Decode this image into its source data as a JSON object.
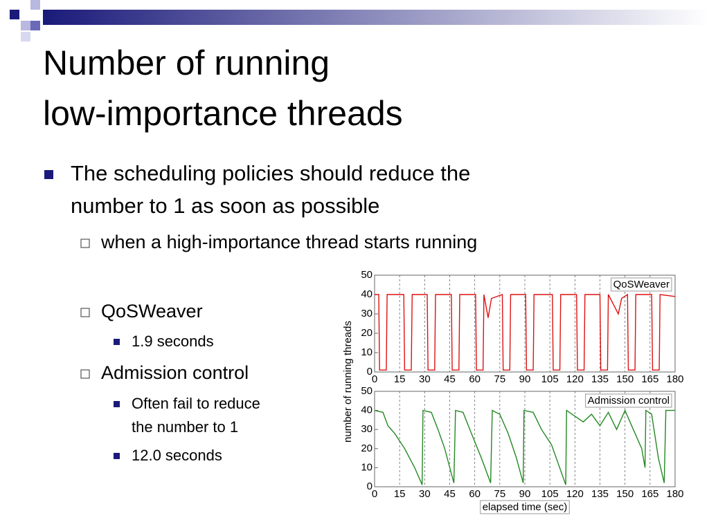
{
  "title": [
    "Number of running",
    "low-importance threads"
  ],
  "bullets": [
    {
      "level": 1,
      "lines": [
        "The scheduling policies should reduce the",
        "number to 1 as soon as possible"
      ]
    },
    {
      "level": 2,
      "lines": [
        "when a high-importance thread starts running"
      ]
    },
    {
      "level": 2,
      "lines": [
        "QoSWeaver"
      ]
    },
    {
      "level": 3,
      "lines": [
        "1.9 seconds"
      ]
    },
    {
      "level": 2,
      "lines": [
        "Admission control"
      ]
    },
    {
      "level": 3,
      "lines": [
        "Often fail to reduce",
        "the number to 1"
      ]
    },
    {
      "level": 3,
      "lines": [
        "12.0 seconds"
      ]
    }
  ],
  "chart_data": [
    {
      "type": "line",
      "y_label": "number of running threads",
      "x": [
        0,
        2.5,
        3,
        7,
        7.5,
        17.5,
        18,
        22,
        22.5,
        31.5,
        32,
        36,
        36.5,
        46,
        46.5,
        50.5,
        51,
        60.5,
        61,
        65,
        65.5,
        68,
        70,
        76.5,
        77,
        81,
        81.5,
        90.5,
        91,
        95,
        95.5,
        106.5,
        107,
        111,
        111.5,
        121,
        121.5,
        125.5,
        126,
        135,
        135.5,
        139.5,
        140,
        146,
        148,
        151.5,
        152,
        156,
        156.5,
        166,
        166.5,
        170.5,
        171,
        180
      ],
      "series": [
        {
          "name": "QoSWeaver",
          "color": "#dd1111",
          "values": [
            40,
            40,
            1,
            1,
            40,
            40,
            1,
            1,
            40,
            40,
            1,
            1,
            40,
            40,
            1,
            1,
            40,
            40,
            1,
            1,
            40,
            28,
            38,
            40,
            1,
            1,
            40,
            40,
            1,
            1,
            40,
            40,
            1,
            1,
            40,
            40,
            1,
            1,
            40,
            40,
            1,
            1,
            40,
            30,
            38,
            40,
            1,
            1,
            40,
            40,
            1,
            1,
            40,
            39
          ]
        }
      ],
      "xlim": [
        0,
        180
      ],
      "ylim": [
        0,
        50
      ],
      "xticks": [
        0,
        15,
        30,
        45,
        60,
        75,
        90,
        105,
        120,
        135,
        150,
        165,
        180
      ],
      "yticks": [
        0,
        10,
        20,
        30,
        40,
        50
      ],
      "grid": true
    },
    {
      "type": "line",
      "x_label": "elapsed time (sec)",
      "x": [
        0,
        5,
        8,
        12,
        18,
        24,
        28.5,
        29,
        34,
        38,
        42,
        47.5,
        48.5,
        53,
        58,
        64,
        69.5,
        70.5,
        75,
        80,
        85,
        89,
        89.5,
        95,
        100,
        106,
        114.5,
        115,
        120,
        125,
        130,
        135,
        140,
        145,
        150,
        155,
        160,
        162,
        162.5,
        166,
        170,
        173.5,
        174.5,
        180
      ],
      "series": [
        {
          "name": "Admission control",
          "color": "#228822",
          "values": [
            40,
            39,
            32,
            28,
            20,
            10,
            1,
            40,
            39,
            30,
            20,
            2,
            40,
            39,
            28,
            15,
            2,
            40,
            38,
            28,
            15,
            2,
            40,
            39,
            30,
            22,
            1,
            40,
            37,
            34,
            38,
            32,
            39,
            30,
            40,
            30,
            20,
            10,
            40,
            38,
            15,
            2,
            40,
            40
          ]
        }
      ],
      "xlim": [
        0,
        180
      ],
      "ylim": [
        0,
        50
      ],
      "xticks": [
        0,
        15,
        30,
        45,
        60,
        75,
        90,
        105,
        120,
        135,
        150,
        165,
        180
      ],
      "yticks": [
        0,
        10,
        20,
        30,
        40,
        50
      ],
      "grid": true
    }
  ]
}
